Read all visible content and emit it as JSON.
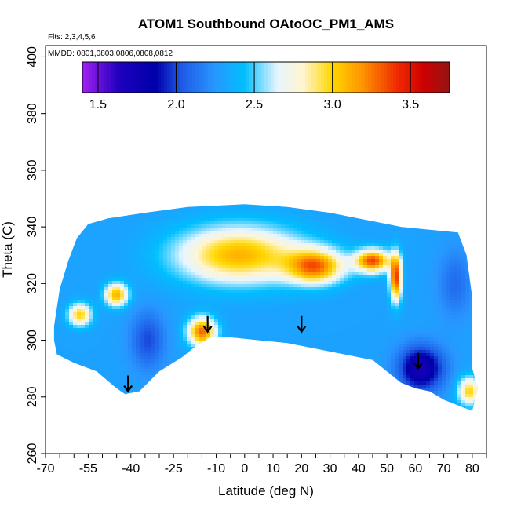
{
  "chart_data": {
    "type": "heatmap",
    "title": "ATOM1 Southbound OAtoOC_PM1_AMS",
    "flights_note": "Flts: 2,3,4,5,6",
    "dates_note": "MMDD: 0801,0803,0806,0808,0812",
    "xlabel": "Latitude (deg N)",
    "ylabel": "Theta (C)",
    "xlim": [
      -70,
      85
    ],
    "ylim": [
      260,
      404
    ],
    "x_tick_labels": [
      "-70",
      "-55",
      "-40",
      "-25",
      "-10",
      "0",
      "10",
      "20",
      "30",
      "40",
      "50",
      "60",
      "70",
      "80"
    ],
    "x_ticks": [
      -70,
      -55,
      -40,
      -25,
      -10,
      0,
      10,
      20,
      30,
      40,
      50,
      60,
      70,
      80
    ],
    "y_ticks": [
      260,
      280,
      300,
      320,
      340,
      360,
      380,
      400
    ],
    "y_tick_labels": [
      "260",
      "280",
      "300",
      "320",
      "340",
      "360",
      "380",
      "400"
    ],
    "colorbar": {
      "range": [
        1.4,
        3.75
      ],
      "ticks": [
        1.5,
        2.0,
        2.5,
        3.0,
        3.5
      ],
      "tick_labels": [
        "1.5",
        "2.0",
        "2.5",
        "3.0",
        "3.5"
      ]
    },
    "grid": false,
    "legend": "colorbar-top",
    "ascent_descent_markers": [
      {
        "lat": -41,
        "theta": 282
      },
      {
        "lat": -13,
        "theta": 303
      },
      {
        "lat": 20,
        "theta": 303
      },
      {
        "lat": 61,
        "theta": 290
      }
    ],
    "regions": [
      {
        "name": "background",
        "value": 2.3
      },
      {
        "lat": -2,
        "theta": 330,
        "value": 3.1,
        "rx": 22,
        "ry": 10
      },
      {
        "lat": 25,
        "theta": 326,
        "value": 3.2,
        "rx": 10,
        "ry": 6
      },
      {
        "lat": 45,
        "theta": 328,
        "value": 3.35,
        "rx": 6,
        "ry": 4
      },
      {
        "lat": 53,
        "theta": 322,
        "value": 3.4,
        "rx": 2,
        "ry": 8
      },
      {
        "lat": -15,
        "theta": 303,
        "value": 3.3,
        "rx": 5,
        "ry": 5
      },
      {
        "lat": -58,
        "theta": 309,
        "value": 3.0,
        "rx": 4,
        "ry": 4
      },
      {
        "lat": -45,
        "theta": 316,
        "value": 3.1,
        "rx": 4,
        "ry": 4
      },
      {
        "lat": 62,
        "theta": 290,
        "value": 1.7,
        "rx": 8,
        "ry": 8
      },
      {
        "lat": -34,
        "theta": 300,
        "value": 2.0,
        "rx": 6,
        "ry": 10
      },
      {
        "lat": 74,
        "theta": 320,
        "value": 2.1,
        "rx": 6,
        "ry": 12
      },
      {
        "lat": 79,
        "theta": 282,
        "value": 3.0,
        "rx": 4,
        "ry": 5
      }
    ]
  }
}
